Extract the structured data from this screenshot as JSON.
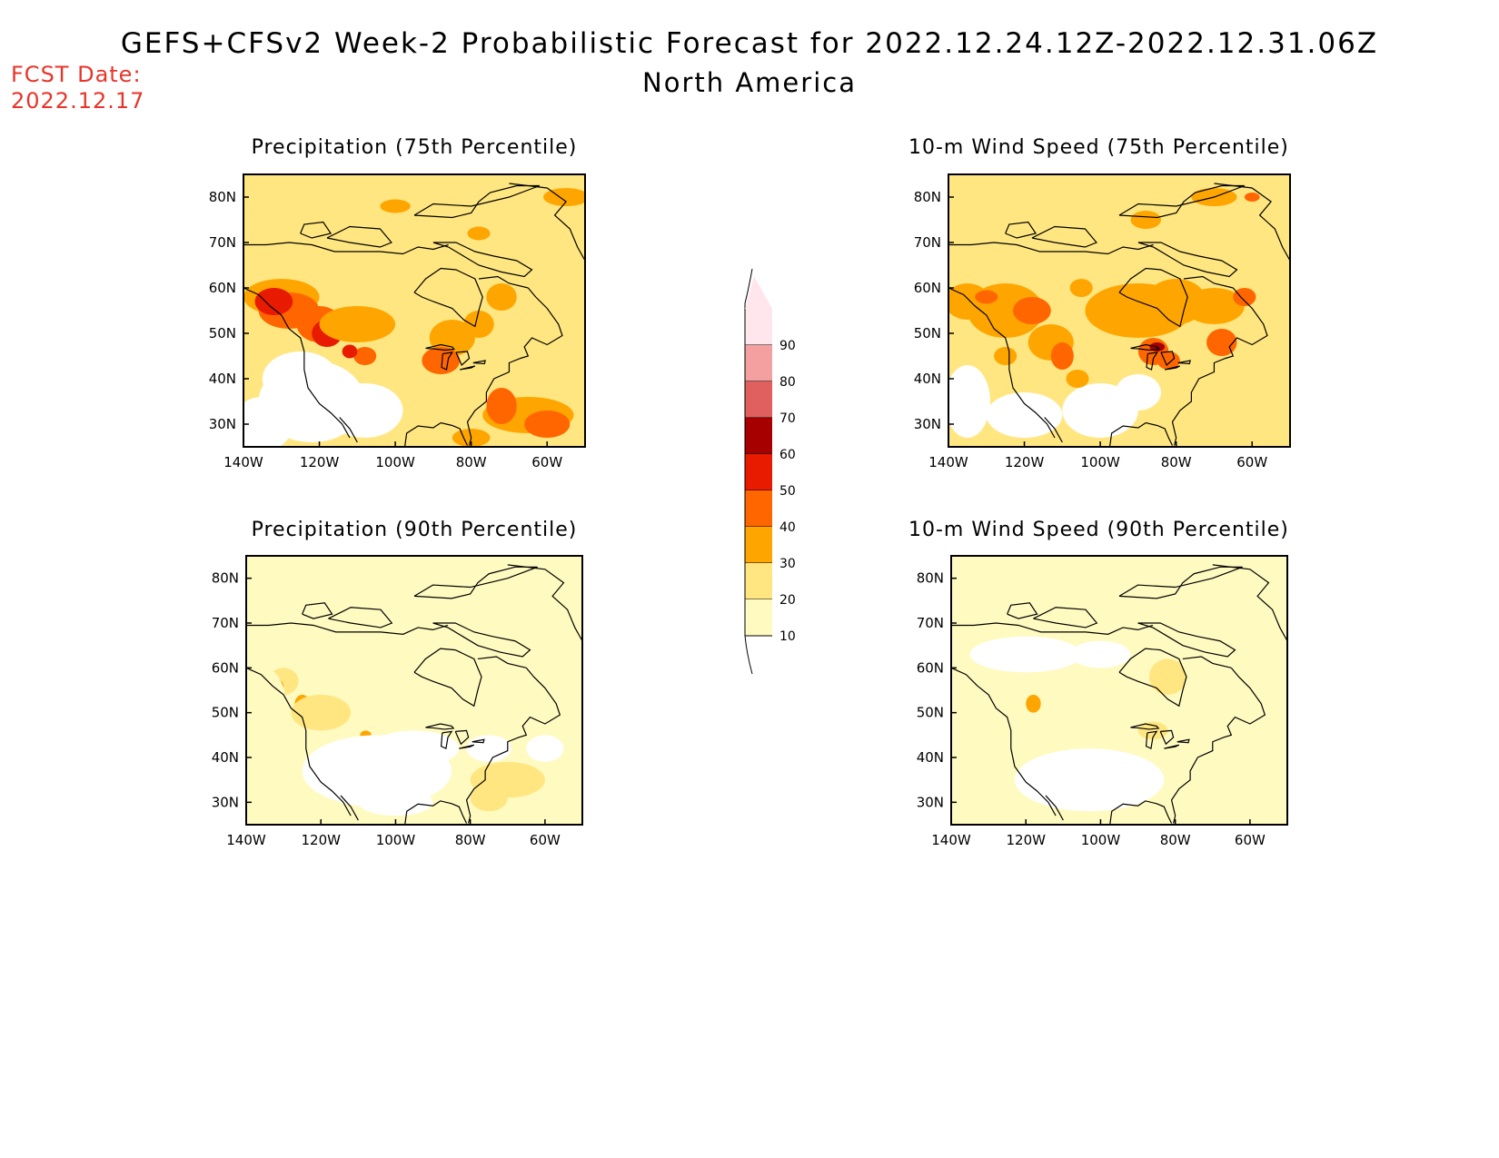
{
  "title": "GEFS+CFSv2 Week-2 Probabilistic Forecast for 2022.12.24.12Z-2022.12.31.06Z",
  "subtitle": "North America",
  "fcst_date": {
    "label": "FCST Date:",
    "value": "2022.12.17"
  },
  "colors": {
    "c10": "#fffac0",
    "c20": "#ffe680",
    "c30": "#ffa500",
    "c40": "#ff6600",
    "c50": "#e81a00",
    "c60": "#a70000",
    "c70": "#e06060",
    "c80": "#f4a0a0",
    "c90": "#ffe6ec"
  },
  "colorbar": {
    "levels": [
      "10",
      "20",
      "30",
      "40",
      "50",
      "60",
      "70",
      "80",
      "90"
    ]
  },
  "axis": {
    "lon_ticks": [
      "140W",
      "120W",
      "100W",
      "80W",
      "60W"
    ],
    "lat_ticks": [
      "80N",
      "70N",
      "60N",
      "50N",
      "40N",
      "30N"
    ],
    "lon_range": [
      -140,
      -50
    ],
    "lat_range": [
      25,
      85
    ]
  },
  "panels": [
    {
      "id": "precip-75",
      "title": "Precipitation (75th Percentile)",
      "field": "precipitation",
      "percentile": 75
    },
    {
      "id": "wind-75",
      "title": "10-m Wind Speed (75th Percentile)",
      "field": "10-m wind speed",
      "percentile": 75
    },
    {
      "id": "precip-90",
      "title": "Precipitation (90th Percentile)",
      "field": "precipitation",
      "percentile": 90
    },
    {
      "id": "wind-90",
      "title": "10-m Wind Speed (90th Percentile)",
      "field": "10-m wind speed",
      "percentile": 90
    }
  ]
}
